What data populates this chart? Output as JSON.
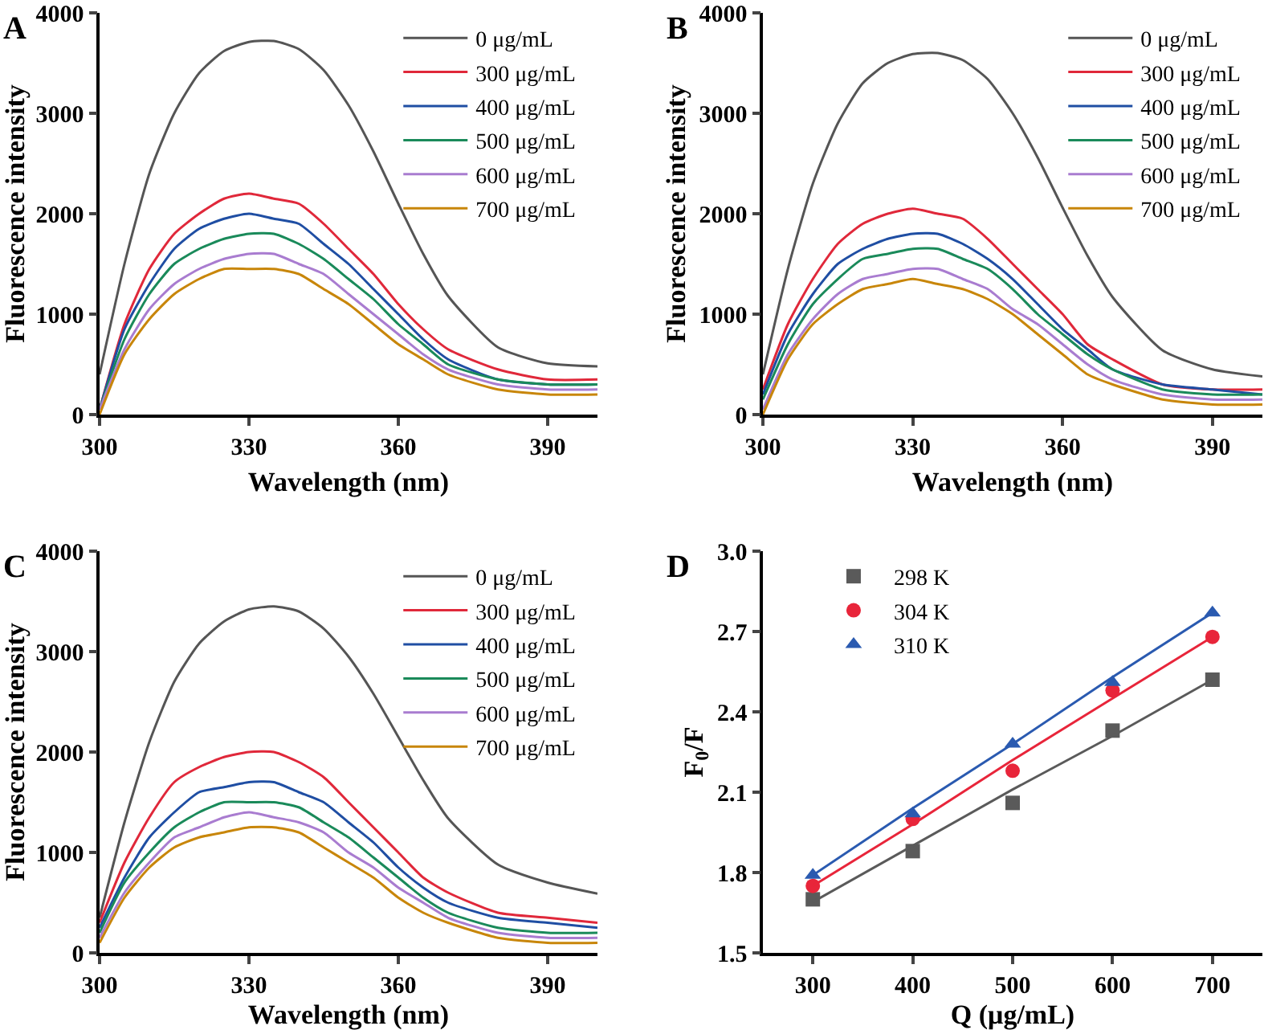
{
  "chart_data": [
    {
      "type": "line",
      "annotations": [
        "A"
      ],
      "xlabel": "Wavelength (nm)",
      "ylabel": "Fluorescence intensity",
      "x": [
        300,
        305,
        310,
        315,
        320,
        325,
        330,
        335,
        340,
        345,
        350,
        355,
        360,
        365,
        370,
        380,
        390,
        400
      ],
      "xlim": [
        300,
        400
      ],
      "xticks": [
        300,
        330,
        360,
        390
      ],
      "ylim": [
        0,
        4000
      ],
      "yticks": [
        0,
        1000,
        2000,
        3000,
        4000
      ],
      "legend": "top right",
      "series": [
        {
          "name": "0 μg/mL",
          "color": "#555555",
          "values": [
            400,
            1500,
            2400,
            3000,
            3400,
            3620,
            3710,
            3720,
            3640,
            3430,
            3080,
            2620,
            2100,
            1600,
            1180,
            670,
            510,
            480
          ]
        },
        {
          "name": "300 μg/mL",
          "color": "#e0283a",
          "values": [
            50,
            900,
            1450,
            1800,
            2000,
            2150,
            2200,
            2150,
            2100,
            1900,
            1650,
            1400,
            1100,
            850,
            650,
            450,
            350,
            350
          ]
        },
        {
          "name": "400 μg/mL",
          "color": "#1f4ea3",
          "values": [
            50,
            850,
            1300,
            1650,
            1850,
            1950,
            2000,
            1950,
            1900,
            1700,
            1500,
            1250,
            1000,
            750,
            550,
            350,
            300,
            300
          ]
        },
        {
          "name": "500 μg/mL",
          "color": "#1a8a5a",
          "values": [
            50,
            750,
            1200,
            1500,
            1650,
            1750,
            1800,
            1800,
            1700,
            1550,
            1350,
            1150,
            900,
            700,
            500,
            350,
            300,
            300
          ]
        },
        {
          "name": "600 μg/mL",
          "color": "#a97cd0",
          "values": [
            50,
            650,
            1050,
            1300,
            1450,
            1550,
            1600,
            1600,
            1500,
            1400,
            1200,
            1000,
            800,
            600,
            450,
            300,
            250,
            250
          ]
        },
        {
          "name": "700 μg/mL",
          "color": "#c8860a",
          "values": [
            0,
            600,
            950,
            1200,
            1350,
            1450,
            1450,
            1450,
            1400,
            1250,
            1100,
            900,
            700,
            550,
            400,
            250,
            200,
            200
          ]
        }
      ]
    },
    {
      "type": "line",
      "annotations": [
        "B"
      ],
      "xlabel": "Wavelength (nm)",
      "ylabel": "Fluorescence intensity",
      "x": [
        300,
        305,
        310,
        315,
        320,
        325,
        330,
        335,
        340,
        345,
        350,
        355,
        360,
        365,
        370,
        380,
        390,
        400
      ],
      "xlim": [
        300,
        400
      ],
      "xticks": [
        300,
        330,
        360,
        390
      ],
      "ylim": [
        0,
        4000
      ],
      "yticks": [
        0,
        1000,
        2000,
        3000,
        4000
      ],
      "legend": "top right",
      "series": [
        {
          "name": "0 μg/mL",
          "color": "#555555",
          "values": [
            400,
            1450,
            2300,
            2900,
            3300,
            3500,
            3590,
            3600,
            3530,
            3340,
            3000,
            2560,
            2060,
            1580,
            1170,
            640,
            450,
            380
          ]
        },
        {
          "name": "300 μg/mL",
          "color": "#e0283a",
          "values": [
            250,
            900,
            1350,
            1700,
            1900,
            2000,
            2050,
            2000,
            1950,
            1750,
            1500,
            1250,
            1000,
            700,
            550,
            300,
            250,
            250
          ]
        },
        {
          "name": "400 μg/mL",
          "color": "#1f4ea3",
          "values": [
            200,
            800,
            1200,
            1500,
            1650,
            1750,
            1800,
            1800,
            1700,
            1550,
            1350,
            1100,
            850,
            650,
            450,
            300,
            250,
            200
          ]
        },
        {
          "name": "500 μg/mL",
          "color": "#1a8a5a",
          "values": [
            150,
            700,
            1100,
            1350,
            1550,
            1600,
            1650,
            1650,
            1550,
            1450,
            1250,
            1000,
            800,
            600,
            450,
            250,
            200,
            200
          ]
        },
        {
          "name": "600 μg/mL",
          "color": "#a97cd0",
          "values": [
            50,
            600,
            950,
            1200,
            1350,
            1400,
            1450,
            1450,
            1350,
            1250,
            1050,
            900,
            700,
            500,
            350,
            200,
            150,
            150
          ]
        },
        {
          "name": "700 μg/mL",
          "color": "#c8860a",
          "values": [
            0,
            550,
            900,
            1100,
            1250,
            1300,
            1350,
            1300,
            1250,
            1150,
            1000,
            800,
            600,
            400,
            300,
            150,
            100,
            100
          ]
        }
      ]
    },
    {
      "type": "line",
      "annotations": [
        "C"
      ],
      "xlabel": "Wavelength (nm)",
      "ylabel": "Fluorescence intensity",
      "x": [
        300,
        305,
        310,
        315,
        320,
        325,
        330,
        335,
        340,
        345,
        350,
        355,
        360,
        365,
        370,
        380,
        390,
        400
      ],
      "xlim": [
        300,
        400
      ],
      "xticks": [
        300,
        330,
        360,
        390
      ],
      "ylim": [
        0,
        4000
      ],
      "yticks": [
        0,
        1000,
        2000,
        3000,
        4000
      ],
      "legend": "top right",
      "series": [
        {
          "name": "0 μg/mL",
          "color": "#555555",
          "values": [
            350,
            1300,
            2100,
            2700,
            3080,
            3300,
            3420,
            3450,
            3400,
            3230,
            2950,
            2580,
            2150,
            1720,
            1340,
            880,
            700,
            590
          ]
        },
        {
          "name": "300 μg/mL",
          "color": "#e0283a",
          "values": [
            300,
            900,
            1350,
            1700,
            1850,
            1950,
            2000,
            2000,
            1900,
            1750,
            1500,
            1250,
            1000,
            750,
            600,
            400,
            350,
            300
          ]
        },
        {
          "name": "400 μg/mL",
          "color": "#1f4ea3",
          "values": [
            250,
            750,
            1150,
            1400,
            1600,
            1650,
            1700,
            1700,
            1600,
            1500,
            1300,
            1100,
            850,
            650,
            500,
            350,
            300,
            250
          ]
        },
        {
          "name": "500 μg/mL",
          "color": "#1a8a5a",
          "values": [
            200,
            700,
            1000,
            1250,
            1400,
            1500,
            1500,
            1500,
            1450,
            1300,
            1150,
            950,
            750,
            550,
            400,
            250,
            200,
            200
          ]
        },
        {
          "name": "600 μg/mL",
          "color": "#a97cd0",
          "values": [
            150,
            600,
            900,
            1150,
            1250,
            1350,
            1400,
            1350,
            1300,
            1200,
            1000,
            850,
            650,
            500,
            350,
            200,
            150,
            150
          ]
        },
        {
          "name": "700 μg/mL",
          "color": "#c8860a",
          "values": [
            100,
            550,
            850,
            1050,
            1150,
            1200,
            1250,
            1250,
            1200,
            1050,
            900,
            750,
            550,
            400,
            300,
            150,
            100,
            100
          ]
        }
      ]
    },
    {
      "type": "scatter",
      "annotations": [
        "D"
      ],
      "xlabel": "Q (μg/mL)",
      "ylabel": "F$_{0}$/F",
      "x": [
        300,
        400,
        500,
        600,
        700
      ],
      "xlim": [
        250,
        750
      ],
      "xticks": [
        300,
        400,
        500,
        600,
        700
      ],
      "ylim": [
        1.5,
        3.0
      ],
      "yticks": [
        1.5,
        1.8,
        2.1,
        2.4,
        2.7,
        {
          "value": 3.0,
          "label": "3.0"
        }
      ],
      "legend": "top left",
      "series": [
        {
          "name": "298 K",
          "color": "#5a5a5a",
          "marker": "square",
          "values": [
            1.7,
            1.88,
            2.06,
            2.33,
            2.52
          ]
        },
        {
          "name": "304 K",
          "color": "#e8253a",
          "marker": "circle",
          "values": [
            1.75,
            2.0,
            2.18,
            2.48,
            2.68
          ]
        },
        {
          "name": "310 K",
          "color": "#2a5ab0",
          "marker": "triangle",
          "values": [
            1.79,
            2.02,
            2.28,
            2.51,
            2.77
          ]
        },
        {
          "type": "line",
          "color": "#5a5a5a",
          "values": [
            1.69,
            1.9,
            2.11,
            2.31,
            2.52
          ]
        },
        {
          "type": "line",
          "color": "#e8253a",
          "values": [
            1.75,
            1.98,
            2.22,
            2.45,
            2.68
          ]
        },
        {
          "type": "line",
          "color": "#2a5ab0",
          "values": [
            1.79,
            2.04,
            2.28,
            2.53,
            2.77
          ]
        }
      ]
    }
  ]
}
